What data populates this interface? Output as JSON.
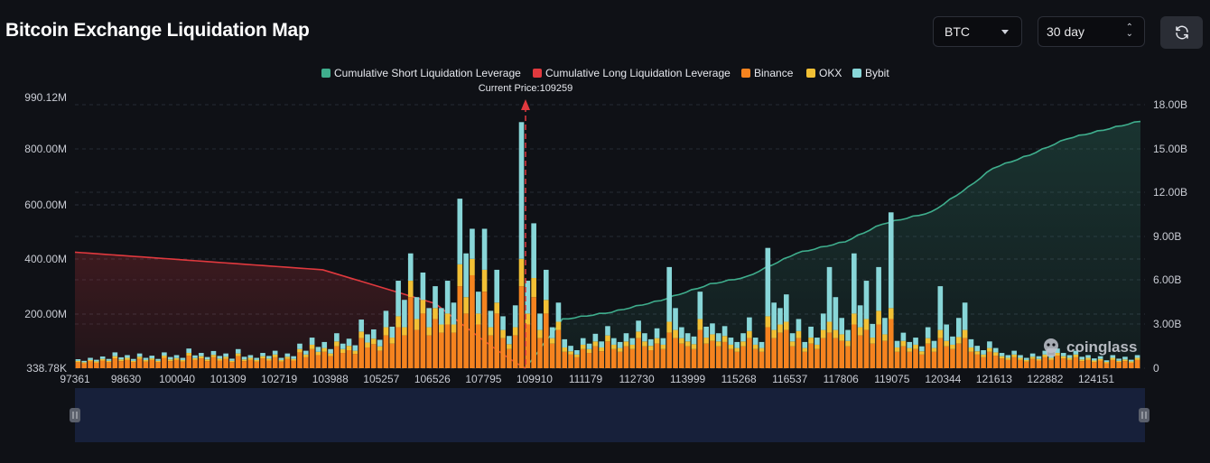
{
  "page": {
    "title": "Bitcoin Exchange Liquidation Map"
  },
  "controls": {
    "coin": {
      "value": "BTC"
    },
    "range": {
      "value": "30 day"
    },
    "refresh_icon": "refresh-icon"
  },
  "legend": [
    {
      "label": "Cumulative Short Liquidation Leverage",
      "color": "#3fae8d"
    },
    {
      "label": "Cumulative Long Liquidation Leverage",
      "color": "#e0393e"
    },
    {
      "label": "Binance",
      "color": "#f5831f"
    },
    {
      "label": "OKX",
      "color": "#f2c035"
    },
    {
      "label": "Bybit",
      "color": "#88d6d8"
    }
  ],
  "current_price_label": "Current Price:109259",
  "watermark": "coinglass",
  "chart_data": {
    "type": "bar",
    "x_labels": [
      "97361",
      "98630",
      "100040",
      "101309",
      "102719",
      "103988",
      "105257",
      "106526",
      "107795",
      "109910",
      "111179",
      "112730",
      "113999",
      "115268",
      "116537",
      "117806",
      "119075",
      "120344",
      "121613",
      "122882",
      "124151"
    ],
    "left_axis": {
      "ticks": [
        "990.12M",
        "800.00M",
        "600.00M",
        "400.00M",
        "200.00M",
        "338.78K"
      ],
      "range_m": [
        0.33878,
        990.12
      ]
    },
    "right_axis": {
      "ticks": [
        "18.00B",
        "15.00B",
        "12.00B",
        "9.00B",
        "6.00B",
        "3.00B",
        "0"
      ],
      "range_b": [
        0,
        18
      ]
    },
    "current_price": 109259,
    "bars_m": [
      [
        22,
        5,
        6
      ],
      [
        18,
        4,
        5
      ],
      [
        25,
        5,
        8
      ],
      [
        20,
        5,
        6
      ],
      [
        28,
        6,
        9
      ],
      [
        22,
        5,
        7
      ],
      [
        36,
        8,
        14
      ],
      [
        26,
        6,
        8
      ],
      [
        30,
        8,
        10
      ],
      [
        22,
        5,
        7
      ],
      [
        34,
        8,
        12
      ],
      [
        24,
        6,
        8
      ],
      [
        30,
        6,
        10
      ],
      [
        22,
        5,
        7
      ],
      [
        38,
        8,
        12
      ],
      [
        26,
        6,
        9
      ],
      [
        30,
        7,
        11
      ],
      [
        24,
        6,
        8
      ],
      [
        46,
        10,
        16
      ],
      [
        30,
        7,
        10
      ],
      [
        36,
        8,
        12
      ],
      [
        26,
        6,
        9
      ],
      [
        40,
        9,
        14
      ],
      [
        28,
        7,
        10
      ],
      [
        34,
        8,
        12
      ],
      [
        22,
        5,
        8
      ],
      [
        44,
        10,
        16
      ],
      [
        26,
        6,
        10
      ],
      [
        30,
        8,
        10
      ],
      [
        24,
        6,
        8
      ],
      [
        36,
        8,
        12
      ],
      [
        28,
        7,
        10
      ],
      [
        40,
        10,
        14
      ],
      [
        24,
        6,
        8
      ],
      [
        34,
        8,
        12
      ],
      [
        28,
        6,
        10
      ],
      [
        58,
        12,
        20
      ],
      [
        40,
        10,
        14
      ],
      [
        70,
        16,
        26
      ],
      [
        48,
        12,
        18
      ],
      [
        60,
        14,
        22
      ],
      [
        44,
        10,
        16
      ],
      [
        80,
        18,
        30
      ],
      [
        56,
        14,
        20
      ],
      [
        66,
        16,
        26
      ],
      [
        52,
        12,
        20
      ],
      [
        110,
        24,
        44
      ],
      [
        76,
        18,
        30
      ],
      [
        88,
        20,
        34
      ],
      [
        64,
        16,
        24
      ],
      [
        120,
        30,
        60
      ],
      [
        90,
        22,
        40
      ],
      [
        150,
        40,
        130
      ],
      [
        120,
        30,
        100
      ],
      [
        260,
        60,
        100
      ],
      [
        140,
        40,
        80
      ],
      [
        200,
        50,
        100
      ],
      [
        120,
        30,
        70
      ],
      [
        180,
        40,
        80
      ],
      [
        130,
        30,
        60
      ],
      [
        160,
        40,
        120
      ],
      [
        130,
        30,
        80
      ],
      [
        300,
        80,
        240
      ],
      [
        200,
        60,
        160
      ],
      [
        340,
        60,
        110
      ],
      [
        160,
        40,
        80
      ],
      [
        280,
        80,
        150
      ],
      [
        120,
        30,
        60
      ],
      [
        200,
        40,
        120
      ],
      [
        110,
        30,
        50
      ],
      [
        70,
        18,
        30
      ],
      [
        120,
        30,
        80
      ],
      [
        300,
        100,
        500
      ],
      [
        160,
        40,
        120
      ],
      [
        260,
        70,
        200
      ],
      [
        110,
        30,
        60
      ],
      [
        200,
        50,
        110
      ],
      [
        90,
        20,
        40
      ],
      [
        140,
        30,
        70
      ],
      [
        60,
        16,
        30
      ],
      [
        50,
        12,
        20
      ],
      [
        40,
        10,
        16
      ],
      [
        70,
        16,
        24
      ],
      [
        56,
        14,
        20
      ],
      [
        80,
        18,
        28
      ],
      [
        62,
        14,
        22
      ],
      [
        98,
        22,
        34
      ],
      [
        70,
        16,
        24
      ],
      [
        60,
        14,
        22
      ],
      [
        80,
        18,
        30
      ],
      [
        70,
        16,
        24
      ],
      [
        110,
        24,
        40
      ],
      [
        80,
        18,
        30
      ],
      [
        66,
        16,
        24
      ],
      [
        90,
        20,
        36
      ],
      [
        70,
        16,
        24
      ],
      [
        130,
        40,
        200
      ],
      [
        110,
        30,
        80
      ],
      [
        90,
        20,
        40
      ],
      [
        80,
        18,
        30
      ],
      [
        70,
        18,
        28
      ],
      [
        140,
        40,
        100
      ],
      [
        90,
        22,
        40
      ],
      [
        100,
        24,
        40
      ],
      [
        80,
        18,
        30
      ],
      [
        96,
        22,
        36
      ],
      [
        70,
        16,
        26
      ],
      [
        60,
        14,
        22
      ],
      [
        80,
        18,
        30
      ],
      [
        110,
        26,
        50
      ],
      [
        70,
        16,
        26
      ],
      [
        60,
        14,
        22
      ],
      [
        150,
        40,
        250
      ],
      [
        110,
        30,
        100
      ],
      [
        130,
        30,
        60
      ],
      [
        140,
        30,
        100
      ],
      [
        80,
        18,
        30
      ],
      [
        110,
        26,
        44
      ],
      [
        60,
        14,
        22
      ],
      [
        90,
        22,
        40
      ],
      [
        70,
        16,
        26
      ],
      [
        110,
        30,
        60
      ],
      [
        130,
        40,
        200
      ],
      [
        110,
        30,
        120
      ],
      [
        100,
        24,
        60
      ],
      [
        80,
        20,
        40
      ],
      [
        160,
        40,
        220
      ],
      [
        120,
        30,
        80
      ],
      [
        140,
        40,
        140
      ],
      [
        90,
        22,
        50
      ],
      [
        160,
        50,
        160
      ],
      [
        100,
        24,
        60
      ],
      [
        180,
        40,
        350
      ],
      [
        60,
        16,
        24
      ],
      [
        80,
        20,
        30
      ],
      [
        60,
        14,
        22
      ],
      [
        70,
        16,
        26
      ],
      [
        50,
        12,
        18
      ],
      [
        90,
        20,
        40
      ],
      [
        60,
        14,
        26
      ],
      [
        110,
        30,
        160
      ],
      [
        80,
        20,
        60
      ],
      [
        70,
        16,
        30
      ],
      [
        90,
        24,
        70
      ],
      [
        110,
        30,
        100
      ],
      [
        60,
        16,
        30
      ],
      [
        50,
        12,
        20
      ],
      [
        40,
        10,
        16
      ],
      [
        60,
        14,
        24
      ],
      [
        46,
        12,
        16
      ],
      [
        36,
        8,
        12
      ],
      [
        30,
        8,
        10
      ],
      [
        40,
        10,
        14
      ],
      [
        30,
        8,
        10
      ],
      [
        24,
        6,
        8
      ],
      [
        34,
        8,
        12
      ],
      [
        28,
        6,
        10
      ],
      [
        40,
        10,
        14
      ],
      [
        30,
        8,
        10
      ],
      [
        46,
        10,
        16
      ],
      [
        36,
        8,
        12
      ],
      [
        30,
        8,
        10
      ],
      [
        40,
        10,
        14
      ],
      [
        26,
        6,
        10
      ],
      [
        30,
        8,
        10
      ],
      [
        22,
        6,
        8
      ],
      [
        28,
        6,
        10
      ],
      [
        18,
        5,
        6
      ],
      [
        30,
        8,
        10
      ],
      [
        22,
        5,
        8
      ],
      [
        26,
        6,
        10
      ],
      [
        20,
        5,
        6
      ],
      [
        30,
        8,
        10
      ]
    ]
  }
}
